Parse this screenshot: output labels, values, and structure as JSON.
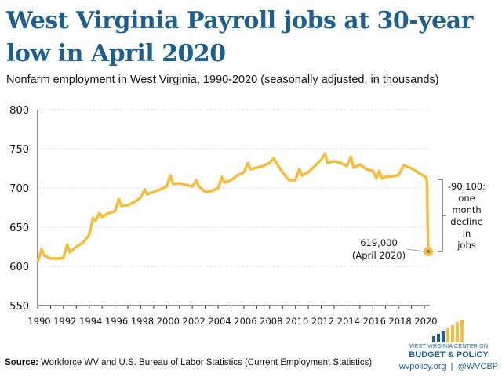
{
  "title": "West Virginia Payroll jobs at 30-year low in April 2020",
  "subtitle": "Nonfarm employment in West Virginia, 1990-2020 (seasonally adjusted, in thousands)",
  "source_label": "Source:",
  "source_text": " Workforce WV and U.S. Bureau of Labor Statistics (Current Employment Statistics)",
  "logo": {
    "line1": "WEST VIRGINIA CENTER ON",
    "line2": "BUDGET & POLICY",
    "links": "wvpolicy.org  |  @WVCBP"
  },
  "colors": {
    "line": "#f6bd3c",
    "title": "#1e5f8e",
    "marker_center": "#6b7b8c"
  },
  "chart_data": {
    "type": "line",
    "title": "West Virginia Payroll jobs at 30-year low in April 2020",
    "xlabel": "",
    "ylabel": "",
    "xlim": [
      1990,
      2020
    ],
    "ylim": [
      550,
      800
    ],
    "yticks": [
      "550",
      "600",
      "650",
      "700",
      "750",
      "800"
    ],
    "xticks": [
      "1990",
      "1992",
      "1994",
      "1996",
      "1998",
      "2000",
      "2002",
      "2004",
      "2006",
      "2008",
      "2010",
      "2012",
      "2014",
      "2016",
      "2018",
      "2020"
    ],
    "grid": true,
    "series": [
      {
        "name": "Nonfarm employment (thousands)",
        "points": [
          [
            1990.0,
            605
          ],
          [
            1990.3,
            622
          ],
          [
            1990.5,
            614
          ],
          [
            1991.0,
            610
          ],
          [
            1991.5,
            610
          ],
          [
            1992.0,
            611
          ],
          [
            1992.3,
            628
          ],
          [
            1992.5,
            618
          ],
          [
            1993.0,
            625
          ],
          [
            1993.5,
            630
          ],
          [
            1994.0,
            640
          ],
          [
            1994.3,
            662
          ],
          [
            1994.5,
            658
          ],
          [
            1994.8,
            668
          ],
          [
            1995.0,
            663
          ],
          [
            1995.5,
            668
          ],
          [
            1996.0,
            670
          ],
          [
            1996.3,
            686
          ],
          [
            1996.5,
            677
          ],
          [
            1997.0,
            678
          ],
          [
            1997.5,
            682
          ],
          [
            1998.0,
            688
          ],
          [
            1998.3,
            698
          ],
          [
            1998.5,
            692
          ],
          [
            1999.0,
            695
          ],
          [
            1999.5,
            698
          ],
          [
            2000.0,
            702
          ],
          [
            2000.3,
            716
          ],
          [
            2000.5,
            705
          ],
          [
            2001.0,
            706
          ],
          [
            2001.5,
            704
          ],
          [
            2002.0,
            702
          ],
          [
            2002.3,
            710
          ],
          [
            2002.5,
            702
          ],
          [
            2003.0,
            695
          ],
          [
            2003.5,
            696
          ],
          [
            2004.0,
            700
          ],
          [
            2004.3,
            714
          ],
          [
            2004.5,
            707
          ],
          [
            2005.0,
            710
          ],
          [
            2005.5,
            716
          ],
          [
            2006.0,
            720
          ],
          [
            2006.3,
            732
          ],
          [
            2006.5,
            724
          ],
          [
            2007.0,
            726
          ],
          [
            2007.5,
            728
          ],
          [
            2008.0,
            732
          ],
          [
            2008.3,
            738
          ],
          [
            2008.6,
            730
          ],
          [
            2009.0,
            720
          ],
          [
            2009.5,
            710
          ],
          [
            2010.0,
            710
          ],
          [
            2010.3,
            724
          ],
          [
            2010.5,
            716
          ],
          [
            2011.0,
            720
          ],
          [
            2011.5,
            728
          ],
          [
            2012.0,
            736
          ],
          [
            2012.3,
            744
          ],
          [
            2012.5,
            732
          ],
          [
            2013.0,
            734
          ],
          [
            2013.5,
            732
          ],
          [
            2014.0,
            728
          ],
          [
            2014.3,
            740
          ],
          [
            2014.5,
            726
          ],
          [
            2015.0,
            730
          ],
          [
            2015.5,
            724
          ],
          [
            2016.0,
            722
          ],
          [
            2016.3,
            712
          ],
          [
            2016.5,
            722
          ],
          [
            2016.7,
            712
          ],
          [
            2017.0,
            714
          ],
          [
            2017.5,
            715
          ],
          [
            2018.0,
            716
          ],
          [
            2018.4,
            729
          ],
          [
            2018.7,
            727
          ],
          [
            2019.0,
            725
          ],
          [
            2019.5,
            720
          ],
          [
            2020.1,
            714
          ],
          [
            2020.2,
            709
          ],
          [
            2020.3,
            619
          ]
        ]
      }
    ],
    "annotations": {
      "point_label_1": "619,000",
      "point_label_2": "(April 2020)",
      "decline_lines": [
        "-90,100:",
        "one",
        "month",
        "decline",
        "in",
        "jobs"
      ]
    }
  }
}
